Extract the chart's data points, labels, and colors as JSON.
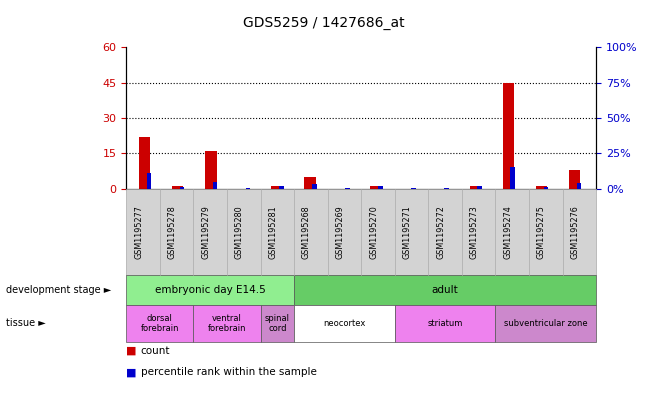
{
  "title": "GDS5259 / 1427686_at",
  "samples": [
    "GSM1195277",
    "GSM1195278",
    "GSM1195279",
    "GSM1195280",
    "GSM1195281",
    "GSM1195268",
    "GSM1195269",
    "GSM1195270",
    "GSM1195271",
    "GSM1195272",
    "GSM1195273",
    "GSM1195274",
    "GSM1195275",
    "GSM1195276"
  ],
  "counts": [
    22,
    1,
    16,
    0,
    1,
    5,
    0,
    1,
    0,
    0,
    1,
    45,
    1,
    8
  ],
  "percentiles": [
    11,
    1,
    5,
    0.5,
    2,
    3,
    0.5,
    2,
    0.5,
    0.5,
    2,
    15,
    1,
    4
  ],
  "count_color": "#cc0000",
  "percentile_color": "#0000cc",
  "ylim_left": [
    0,
    60
  ],
  "ylim_right": [
    0,
    100
  ],
  "yticks_left": [
    0,
    15,
    30,
    45,
    60
  ],
  "yticks_right": [
    0,
    25,
    50,
    75,
    100
  ],
  "ytick_labels_right": [
    "0%",
    "25%",
    "50%",
    "75%",
    "100%"
  ],
  "dev_stages": [
    {
      "label": "embryonic day E14.5",
      "start": 0,
      "end": 5,
      "color": "#90ee90"
    },
    {
      "label": "adult",
      "start": 5,
      "end": 14,
      "color": "#66cc66"
    }
  ],
  "tissues": [
    {
      "label": "dorsal\nforebrain",
      "start": 0,
      "end": 2,
      "color": "#ee82ee"
    },
    {
      "label": "ventral\nforebrain",
      "start": 2,
      "end": 4,
      "color": "#ee82ee"
    },
    {
      "label": "spinal\ncord",
      "start": 4,
      "end": 5,
      "color": "#cc88cc"
    },
    {
      "label": "neocortex",
      "start": 5,
      "end": 8,
      "color": "#ffffff"
    },
    {
      "label": "striatum",
      "start": 8,
      "end": 11,
      "color": "#ee82ee"
    },
    {
      "label": "subventricular zone",
      "start": 11,
      "end": 14,
      "color": "#cc88cc"
    }
  ],
  "legend_count_label": "count",
  "legend_pct_label": "percentile rank within the sample"
}
